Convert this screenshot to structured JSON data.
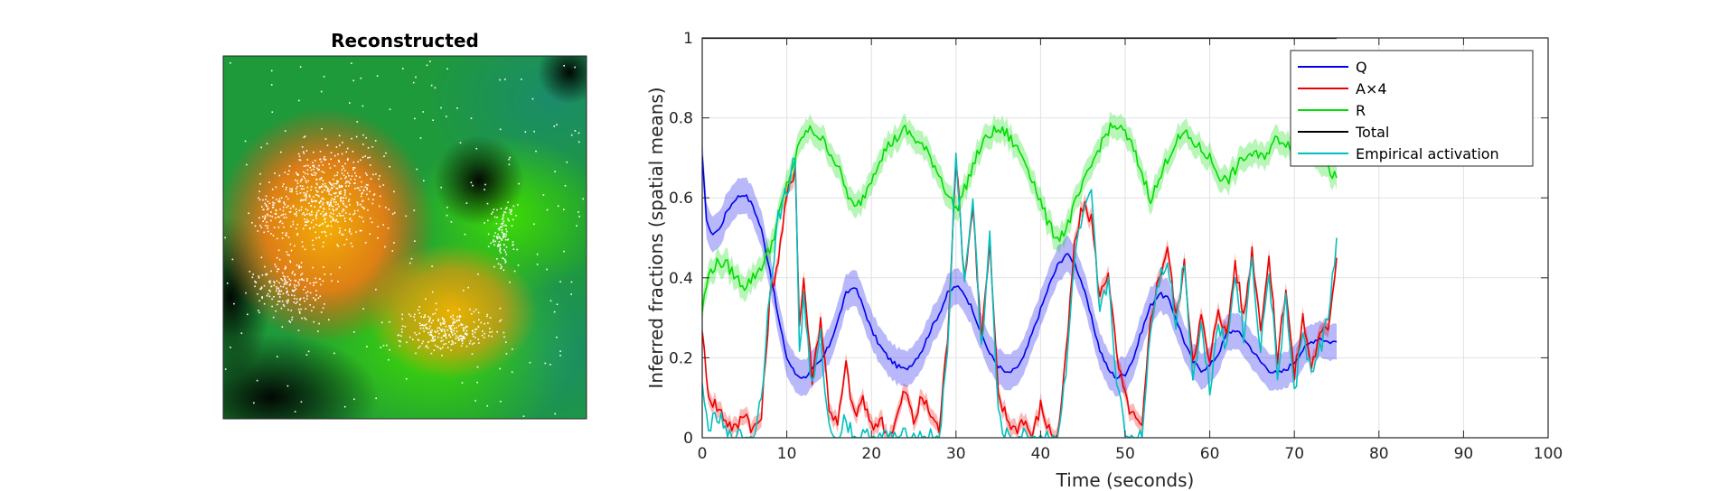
{
  "image_panel": {
    "title": "Reconstructed"
  },
  "colors": {
    "Q": "#0000ee",
    "A": "#ee0000",
    "R": "#00dd00",
    "Total": "#000000",
    "Empirical": "#00c0c0"
  },
  "chart_data": {
    "type": "line",
    "title": "",
    "xlabel": "Time (seconds)",
    "ylabel": "Inferred fractions (spatial means)",
    "xlim": [
      0,
      100
    ],
    "ylim": [
      0,
      1
    ],
    "xticks": [
      0,
      10,
      20,
      30,
      40,
      50,
      60,
      70,
      80,
      90,
      100
    ],
    "yticks": [
      0,
      0.2,
      0.4,
      0.6,
      0.8,
      1
    ],
    "xtick_labels": [
      "0",
      "10",
      "20",
      "30",
      "40",
      "50",
      "60",
      "70",
      "80",
      "90",
      "100"
    ],
    "ytick_labels": [
      "0",
      "0.2",
      "0.4",
      "0.6",
      "0.8",
      "1"
    ],
    "grid": true,
    "legend_position": "top-right",
    "series": [
      {
        "name": "Q",
        "key": "Q",
        "band": 0.045,
        "points": [
          [
            0,
            0.7
          ],
          [
            0.5,
            0.55
          ],
          [
            1,
            0.51
          ],
          [
            2,
            0.52
          ],
          [
            3,
            0.57
          ],
          [
            4,
            0.6
          ],
          [
            5,
            0.61
          ],
          [
            6,
            0.58
          ],
          [
            7,
            0.52
          ],
          [
            8,
            0.42
          ],
          [
            9,
            0.3
          ],
          [
            10,
            0.2
          ],
          [
            11,
            0.16
          ],
          [
            12,
            0.15
          ],
          [
            13,
            0.17
          ],
          [
            14,
            0.19
          ],
          [
            15,
            0.23
          ],
          [
            16,
            0.29
          ],
          [
            17,
            0.36
          ],
          [
            18,
            0.38
          ],
          [
            19,
            0.33
          ],
          [
            20,
            0.27
          ],
          [
            21,
            0.23
          ],
          [
            22,
            0.2
          ],
          [
            23,
            0.18
          ],
          [
            24,
            0.17
          ],
          [
            25,
            0.19
          ],
          [
            26,
            0.22
          ],
          [
            27,
            0.27
          ],
          [
            28,
            0.31
          ],
          [
            29,
            0.36
          ],
          [
            30,
            0.38
          ],
          [
            31,
            0.36
          ],
          [
            32,
            0.32
          ],
          [
            33,
            0.26
          ],
          [
            34,
            0.21
          ],
          [
            35,
            0.18
          ],
          [
            36,
            0.16
          ],
          [
            37,
            0.17
          ],
          [
            38,
            0.2
          ],
          [
            39,
            0.26
          ],
          [
            40,
            0.32
          ],
          [
            41,
            0.38
          ],
          [
            42,
            0.43
          ],
          [
            43,
            0.46
          ],
          [
            44,
            0.44
          ],
          [
            45,
            0.38
          ],
          [
            46,
            0.3
          ],
          [
            47,
            0.22
          ],
          [
            48,
            0.17
          ],
          [
            49,
            0.15
          ],
          [
            50,
            0.16
          ],
          [
            51,
            0.2
          ],
          [
            52,
            0.27
          ],
          [
            53,
            0.33
          ],
          [
            54,
            0.36
          ],
          [
            55,
            0.35
          ],
          [
            56,
            0.3
          ],
          [
            57,
            0.24
          ],
          [
            58,
            0.19
          ],
          [
            59,
            0.17
          ],
          [
            60,
            0.18
          ],
          [
            61,
            0.21
          ],
          [
            62,
            0.26
          ],
          [
            63,
            0.27
          ],
          [
            64,
            0.25
          ],
          [
            65,
            0.22
          ],
          [
            66,
            0.19
          ],
          [
            67,
            0.17
          ],
          [
            68,
            0.16
          ],
          [
            69,
            0.17
          ],
          [
            70,
            0.19
          ],
          [
            71,
            0.22
          ],
          [
            72,
            0.24
          ],
          [
            73,
            0.25
          ],
          [
            74,
            0.24
          ],
          [
            75,
            0.24
          ]
        ]
      },
      {
        "name": "A×4",
        "key": "A",
        "band": 0.02,
        "points": [
          [
            0,
            0.28
          ],
          [
            0.5,
            0.14
          ],
          [
            1,
            0.1
          ],
          [
            2,
            0.07
          ],
          [
            3,
            0.04
          ],
          [
            4,
            0.02
          ],
          [
            5,
            0.07
          ],
          [
            6,
            0.02
          ],
          [
            7,
            0.05
          ],
          [
            8,
            0.35
          ],
          [
            9,
            0.45
          ],
          [
            10,
            0.6
          ],
          [
            11,
            0.68
          ],
          [
            11.5,
            0.28
          ],
          [
            12,
            0.4
          ],
          [
            13,
            0.15
          ],
          [
            14,
            0.3
          ],
          [
            15,
            0.08
          ],
          [
            16,
            0.03
          ],
          [
            17,
            0.18
          ],
          [
            18,
            0.05
          ],
          [
            19,
            0.1
          ],
          [
            20,
            0.02
          ],
          [
            21,
            0.05
          ],
          [
            22,
            0.0
          ],
          [
            23,
            0.05
          ],
          [
            24,
            0.12
          ],
          [
            25,
            0.04
          ],
          [
            26,
            0.1
          ],
          [
            27,
            0.06
          ],
          [
            28,
            0.02
          ],
          [
            29,
            0.25
          ],
          [
            30,
            0.7
          ],
          [
            31,
            0.4
          ],
          [
            32,
            0.58
          ],
          [
            33,
            0.25
          ],
          [
            34,
            0.48
          ],
          [
            35,
            0.1
          ],
          [
            36,
            0.05
          ],
          [
            37,
            0.02
          ],
          [
            38,
            0.05
          ],
          [
            39,
            0.0
          ],
          [
            40,
            0.08
          ],
          [
            41,
            0.02
          ],
          [
            42,
            0.0
          ],
          [
            43,
            0.2
          ],
          [
            44,
            0.48
          ],
          [
            45,
            0.58
          ],
          [
            46,
            0.55
          ],
          [
            47,
            0.35
          ],
          [
            48,
            0.42
          ],
          [
            49,
            0.2
          ],
          [
            50,
            0.1
          ],
          [
            51,
            0.05
          ],
          [
            52,
            0.02
          ],
          [
            53,
            0.3
          ],
          [
            54,
            0.4
          ],
          [
            55,
            0.48
          ],
          [
            56,
            0.3
          ],
          [
            57,
            0.43
          ],
          [
            58,
            0.2
          ],
          [
            59,
            0.3
          ],
          [
            60,
            0.18
          ],
          [
            61,
            0.33
          ],
          [
            62,
            0.25
          ],
          [
            63,
            0.44
          ],
          [
            64,
            0.3
          ],
          [
            65,
            0.47
          ],
          [
            66,
            0.28
          ],
          [
            67,
            0.45
          ],
          [
            68,
            0.2
          ],
          [
            69,
            0.38
          ],
          [
            70,
            0.15
          ],
          [
            71,
            0.3
          ],
          [
            72,
            0.18
          ],
          [
            73,
            0.25
          ],
          [
            74,
            0.28
          ],
          [
            75,
            0.45
          ]
        ]
      },
      {
        "name": "R",
        "key": "R",
        "band": 0.03,
        "points": [
          [
            0,
            0.32
          ],
          [
            0.5,
            0.38
          ],
          [
            1,
            0.42
          ],
          [
            2,
            0.44
          ],
          [
            3,
            0.43
          ],
          [
            4,
            0.4
          ],
          [
            5,
            0.38
          ],
          [
            6,
            0.4
          ],
          [
            7,
            0.43
          ],
          [
            8,
            0.47
          ],
          [
            9,
            0.55
          ],
          [
            10,
            0.63
          ],
          [
            11,
            0.7
          ],
          [
            12,
            0.76
          ],
          [
            13,
            0.77
          ],
          [
            14,
            0.75
          ],
          [
            15,
            0.72
          ],
          [
            16,
            0.68
          ],
          [
            17,
            0.62
          ],
          [
            18,
            0.57
          ],
          [
            19,
            0.6
          ],
          [
            20,
            0.65
          ],
          [
            21,
            0.7
          ],
          [
            22,
            0.73
          ],
          [
            23,
            0.75
          ],
          [
            24,
            0.77
          ],
          [
            25,
            0.75
          ],
          [
            26,
            0.73
          ],
          [
            27,
            0.7
          ],
          [
            28,
            0.66
          ],
          [
            29,
            0.61
          ],
          [
            30,
            0.57
          ],
          [
            31,
            0.62
          ],
          [
            32,
            0.68
          ],
          [
            33,
            0.73
          ],
          [
            34,
            0.76
          ],
          [
            35,
            0.77
          ],
          [
            36,
            0.76
          ],
          [
            37,
            0.73
          ],
          [
            38,
            0.7
          ],
          [
            39,
            0.65
          ],
          [
            40,
            0.59
          ],
          [
            41,
            0.53
          ],
          [
            42,
            0.5
          ],
          [
            43,
            0.52
          ],
          [
            44,
            0.58
          ],
          [
            45,
            0.63
          ],
          [
            46,
            0.68
          ],
          [
            47,
            0.73
          ],
          [
            48,
            0.77
          ],
          [
            49,
            0.78
          ],
          [
            50,
            0.76
          ],
          [
            51,
            0.72
          ],
          [
            52,
            0.66
          ],
          [
            53,
            0.6
          ],
          [
            54,
            0.64
          ],
          [
            55,
            0.7
          ],
          [
            56,
            0.74
          ],
          [
            57,
            0.76
          ],
          [
            58,
            0.74
          ],
          [
            59,
            0.72
          ],
          [
            60,
            0.7
          ],
          [
            61,
            0.66
          ],
          [
            62,
            0.64
          ],
          [
            63,
            0.67
          ],
          [
            64,
            0.7
          ],
          [
            65,
            0.71
          ],
          [
            66,
            0.7
          ],
          [
            67,
            0.72
          ],
          [
            68,
            0.75
          ],
          [
            69,
            0.74
          ],
          [
            70,
            0.72
          ],
          [
            71,
            0.75
          ],
          [
            72,
            0.73
          ],
          [
            73,
            0.7
          ],
          [
            74,
            0.67
          ],
          [
            75,
            0.65
          ]
        ]
      },
      {
        "name": "Total",
        "key": "Total",
        "band": 0,
        "points": [
          [
            0,
            1
          ],
          [
            75,
            1
          ]
        ]
      },
      {
        "name": "Empirical activation",
        "key": "Empirical",
        "band": 0,
        "points": [
          [
            0,
            0.12
          ],
          [
            0.5,
            0.05
          ],
          [
            1,
            0.03
          ],
          [
            2,
            0.05
          ],
          [
            3,
            0.0
          ],
          [
            4,
            0.0
          ],
          [
            5,
            0.0
          ],
          [
            6,
            0.0
          ],
          [
            7,
            0.1
          ],
          [
            8,
            0.38
          ],
          [
            9,
            0.55
          ],
          [
            10,
            0.62
          ],
          [
            11,
            0.7
          ],
          [
            11.5,
            0.22
          ],
          [
            12,
            0.35
          ],
          [
            13,
            0.12
          ],
          [
            14,
            0.25
          ],
          [
            15,
            0.02
          ],
          [
            16,
            0.0
          ],
          [
            17,
            0.05
          ],
          [
            18,
            0.0
          ],
          [
            19,
            0.0
          ],
          [
            20,
            0.0
          ],
          [
            21,
            0.0
          ],
          [
            22,
            0.0
          ],
          [
            23,
            0.0
          ],
          [
            24,
            0.0
          ],
          [
            25,
            0.0
          ],
          [
            26,
            0.0
          ],
          [
            27,
            0.0
          ],
          [
            28,
            0.0
          ],
          [
            29,
            0.2
          ],
          [
            30,
            0.72
          ],
          [
            31,
            0.38
          ],
          [
            32,
            0.6
          ],
          [
            33,
            0.22
          ],
          [
            34,
            0.5
          ],
          [
            35,
            0.05
          ],
          [
            36,
            0.0
          ],
          [
            37,
            0.0
          ],
          [
            38,
            0.0
          ],
          [
            39,
            0.0
          ],
          [
            40,
            0.0
          ],
          [
            41,
            0.0
          ],
          [
            42,
            0.0
          ],
          [
            43,
            0.15
          ],
          [
            44,
            0.45
          ],
          [
            45,
            0.55
          ],
          [
            46,
            0.6
          ],
          [
            47,
            0.3
          ],
          [
            48,
            0.4
          ],
          [
            49,
            0.15
          ],
          [
            50,
            0.0
          ],
          [
            51,
            0.0
          ],
          [
            52,
            0.0
          ],
          [
            53,
            0.28
          ],
          [
            54,
            0.4
          ],
          [
            55,
            0.45
          ],
          [
            56,
            0.28
          ],
          [
            57,
            0.45
          ],
          [
            58,
            0.15
          ],
          [
            59,
            0.28
          ],
          [
            60,
            0.12
          ],
          [
            61,
            0.3
          ],
          [
            62,
            0.22
          ],
          [
            63,
            0.42
          ],
          [
            64,
            0.25
          ],
          [
            65,
            0.45
          ],
          [
            66,
            0.22
          ],
          [
            67,
            0.42
          ],
          [
            68,
            0.15
          ],
          [
            69,
            0.35
          ],
          [
            70,
            0.1
          ],
          [
            71,
            0.28
          ],
          [
            72,
            0.15
          ],
          [
            73,
            0.22
          ],
          [
            74,
            0.3
          ],
          [
            75,
            0.5
          ]
        ]
      }
    ]
  }
}
